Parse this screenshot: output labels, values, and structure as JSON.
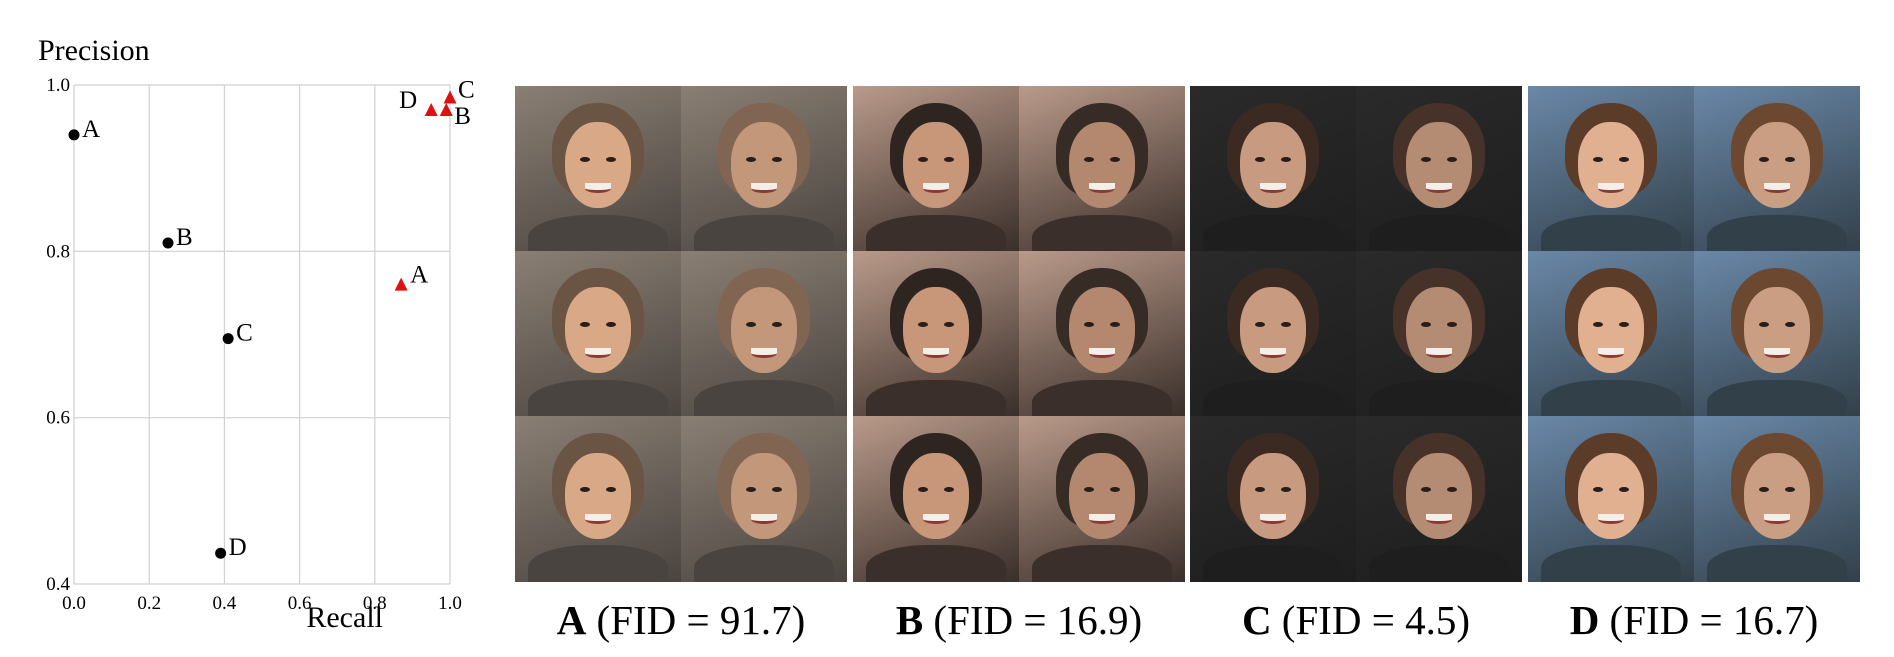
{
  "chart_data": {
    "type": "scatter",
    "xlabel": "Recall",
    "ylabel": "Precision",
    "xlim": [
      0.0,
      1.0
    ],
    "ylim": [
      0.4,
      1.0
    ],
    "xticks": [
      "0.0",
      "0.2",
      "0.4",
      "0.6",
      "0.8",
      "1.0"
    ],
    "yticks": [
      "0.4",
      "0.6",
      "0.8",
      "1.0"
    ],
    "grid": true,
    "series": [
      {
        "marker": "circle",
        "color": "#000000",
        "points": [
          {
            "label": "A",
            "x": 0.0,
            "y": 0.94
          },
          {
            "label": "B",
            "x": 0.25,
            "y": 0.81
          },
          {
            "label": "C",
            "x": 0.41,
            "y": 0.695
          },
          {
            "label": "D",
            "x": 0.39,
            "y": 0.437
          }
        ]
      },
      {
        "marker": "triangle",
        "color": "#e01010",
        "points": [
          {
            "label": "A",
            "x": 0.87,
            "y": 0.76
          },
          {
            "label": "B",
            "x": 0.99,
            "y": 0.97
          },
          {
            "label": "C",
            "x": 1.0,
            "y": 0.985
          },
          {
            "label": "D",
            "x": 0.95,
            "y": 0.97
          }
        ]
      }
    ]
  },
  "panels": [
    {
      "letter": "A",
      "fid_text": "(FID = 91.7)"
    },
    {
      "letter": "B",
      "fid_text": "(FID = 16.9)"
    },
    {
      "letter": "C",
      "fid_text": "(FID = 4.5)"
    },
    {
      "letter": "D",
      "fid_text": "(FID = 16.7)"
    }
  ]
}
